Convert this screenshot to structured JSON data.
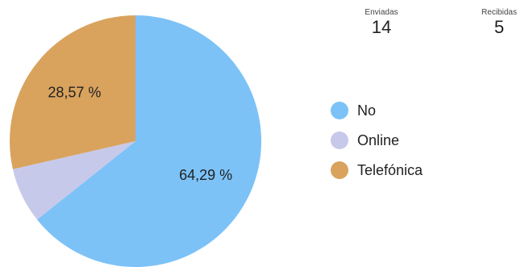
{
  "stats": {
    "sent": {
      "label": "Enviadas",
      "value": "14"
    },
    "received": {
      "label": "Recibidas",
      "value": "5"
    }
  },
  "chart_data": {
    "type": "pie",
    "title": "",
    "categories": [
      "No",
      "Online",
      "Telefónica"
    ],
    "values": [
      64.29,
      7.14,
      28.57
    ],
    "unit": "%",
    "data_labels": [
      "64,29 %",
      "",
      "28,57 %"
    ],
    "colors": [
      "#7cc2f7",
      "#c7c9ea",
      "#d9a35e"
    ],
    "legend_position": "right"
  }
}
